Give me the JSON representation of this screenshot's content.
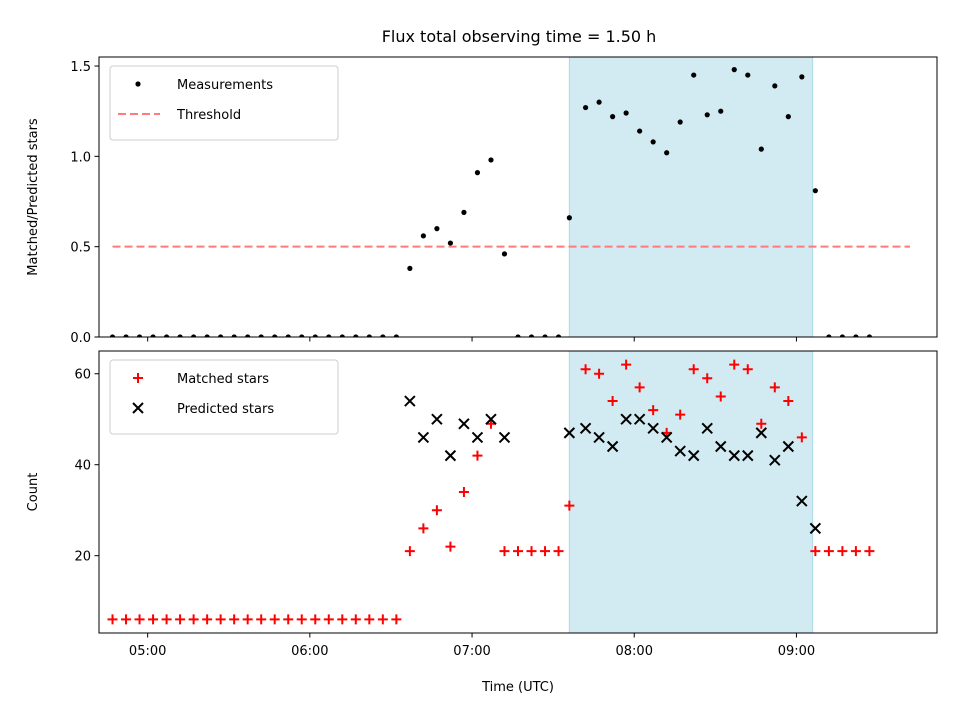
{
  "chart_data": [
    {
      "type": "scatter",
      "title": "Flux total observing time = 1.50 h",
      "xlabel": "",
      "ylabel": "Matched/Predicted stars",
      "xlim": [
        "04:42",
        "09:52"
      ],
      "ylim": [
        0,
        1.55
      ],
      "yticks": [
        "0.0",
        "0.5",
        "1.0",
        "1.5"
      ],
      "xticks": [
        "05:00",
        "06:00",
        "07:00",
        "08:00",
        "09:00"
      ],
      "show_xtick_labels": false,
      "legend": {
        "placement": "top-left",
        "entries": [
          "Measurements",
          "Threshold"
        ]
      },
      "shaded_interval": {
        "x": [
          "07:36",
          "09:06"
        ],
        "color": "#add8e6"
      },
      "threshold": {
        "name": "Threshold",
        "value": 0.5,
        "x": [
          "04:47",
          "09:42"
        ],
        "color": "#ff7b7b"
      },
      "series": [
        {
          "name": "Measurements",
          "color": "#000000",
          "marker": "dot",
          "points": [
            [
              "04:47",
              0
            ],
            [
              "04:52",
              0
            ],
            [
              "04:57",
              0
            ],
            [
              "05:02",
              0
            ],
            [
              "05:07",
              0
            ],
            [
              "05:12",
              0
            ],
            [
              "05:17",
              0
            ],
            [
              "05:22",
              0
            ],
            [
              "05:27",
              0
            ],
            [
              "05:32",
              0
            ],
            [
              "05:37",
              0
            ],
            [
              "05:42",
              0
            ],
            [
              "05:47",
              0
            ],
            [
              "05:52",
              0
            ],
            [
              "05:57",
              0
            ],
            [
              "06:02",
              0
            ],
            [
              "06:07",
              0
            ],
            [
              "06:12",
              0
            ],
            [
              "06:17",
              0
            ],
            [
              "06:22",
              0
            ],
            [
              "06:27",
              0
            ],
            [
              "06:32",
              0
            ],
            [
              "06:37",
              0.38
            ],
            [
              "06:42",
              0.56
            ],
            [
              "06:47",
              0.6
            ],
            [
              "06:52",
              0.52
            ],
            [
              "06:57",
              0.69
            ],
            [
              "07:02",
              0.91
            ],
            [
              "07:07",
              0.98
            ],
            [
              "07:12",
              0.46
            ],
            [
              "07:17",
              0
            ],
            [
              "07:22",
              0
            ],
            [
              "07:27",
              0
            ],
            [
              "07:32",
              0
            ],
            [
              "07:36",
              0.66
            ],
            [
              "07:42",
              1.27
            ],
            [
              "07:47",
              1.3
            ],
            [
              "07:52",
              1.22
            ],
            [
              "07:57",
              1.24
            ],
            [
              "08:02",
              1.14
            ],
            [
              "08:07",
              1.08
            ],
            [
              "08:12",
              1.02
            ],
            [
              "08:17",
              1.19
            ],
            [
              "08:22",
              1.45
            ],
            [
              "08:27",
              1.23
            ],
            [
              "08:32",
              1.25
            ],
            [
              "08:37",
              1.48
            ],
            [
              "08:42",
              1.45
            ],
            [
              "08:47",
              1.04
            ],
            [
              "08:52",
              1.39
            ],
            [
              "08:57",
              1.22
            ],
            [
              "09:02",
              1.44
            ],
            [
              "09:07",
              0.81
            ],
            [
              "09:12",
              0
            ],
            [
              "09:17",
              0
            ],
            [
              "09:22",
              0
            ],
            [
              "09:27",
              0
            ]
          ]
        }
      ]
    },
    {
      "type": "scatter",
      "title": "",
      "xlabel": "Time (UTC)",
      "ylabel": "Count",
      "xlim": [
        "04:42",
        "09:52"
      ],
      "ylim": [
        3,
        65
      ],
      "yticks": [
        "20",
        "40",
        "60"
      ],
      "xticks": [
        "05:00",
        "06:00",
        "07:00",
        "08:00",
        "09:00"
      ],
      "legend": {
        "placement": "top-left",
        "entries": [
          "Matched stars",
          "Predicted stars"
        ]
      },
      "shaded_interval": {
        "x": [
          "07:36",
          "09:06"
        ],
        "color": "#add8e6"
      },
      "series": [
        {
          "name": "Matched stars",
          "color": "#ff0000",
          "marker": "plus",
          "points": [
            [
              "04:47",
              6
            ],
            [
              "04:52",
              6
            ],
            [
              "04:57",
              6
            ],
            [
              "05:02",
              6
            ],
            [
              "05:07",
              6
            ],
            [
              "05:12",
              6
            ],
            [
              "05:17",
              6
            ],
            [
              "05:22",
              6
            ],
            [
              "05:27",
              6
            ],
            [
              "05:32",
              6
            ],
            [
              "05:37",
              6
            ],
            [
              "05:42",
              6
            ],
            [
              "05:47",
              6
            ],
            [
              "05:52",
              6
            ],
            [
              "05:57",
              6
            ],
            [
              "06:02",
              6
            ],
            [
              "06:07",
              6
            ],
            [
              "06:12",
              6
            ],
            [
              "06:17",
              6
            ],
            [
              "06:22",
              6
            ],
            [
              "06:27",
              6
            ],
            [
              "06:32",
              6
            ],
            [
              "06:37",
              21
            ],
            [
              "06:42",
              26
            ],
            [
              "06:47",
              30
            ],
            [
              "06:52",
              22
            ],
            [
              "06:57",
              34
            ],
            [
              "07:02",
              42
            ],
            [
              "07:07",
              49
            ],
            [
              "07:12",
              21
            ],
            [
              "07:17",
              21
            ],
            [
              "07:22",
              21
            ],
            [
              "07:27",
              21
            ],
            [
              "07:32",
              21
            ],
            [
              "07:36",
              31
            ],
            [
              "07:42",
              61
            ],
            [
              "07:47",
              60
            ],
            [
              "07:52",
              54
            ],
            [
              "07:57",
              62
            ],
            [
              "08:02",
              57
            ],
            [
              "08:07",
              52
            ],
            [
              "08:12",
              47
            ],
            [
              "08:17",
              51
            ],
            [
              "08:22",
              61
            ],
            [
              "08:27",
              59
            ],
            [
              "08:32",
              55
            ],
            [
              "08:37",
              62
            ],
            [
              "08:42",
              61
            ],
            [
              "08:47",
              49
            ],
            [
              "08:52",
              57
            ],
            [
              "08:57",
              54
            ],
            [
              "09:02",
              46
            ],
            [
              "09:07",
              21
            ],
            [
              "09:12",
              21
            ],
            [
              "09:17",
              21
            ],
            [
              "09:22",
              21
            ],
            [
              "09:27",
              21
            ]
          ]
        },
        {
          "name": "Predicted stars",
          "color": "#000000",
          "marker": "x",
          "points": [
            [
              "06:37",
              54
            ],
            [
              "06:42",
              46
            ],
            [
              "06:47",
              50
            ],
            [
              "06:52",
              42
            ],
            [
              "06:57",
              49
            ],
            [
              "07:02",
              46
            ],
            [
              "07:07",
              50
            ],
            [
              "07:12",
              46
            ],
            [
              "07:36",
              47
            ],
            [
              "07:42",
              48
            ],
            [
              "07:47",
              46
            ],
            [
              "07:52",
              44
            ],
            [
              "07:57",
              50
            ],
            [
              "08:02",
              50
            ],
            [
              "08:07",
              48
            ],
            [
              "08:12",
              46
            ],
            [
              "08:17",
              43
            ],
            [
              "08:22",
              42
            ],
            [
              "08:27",
              48
            ],
            [
              "08:32",
              44
            ],
            [
              "08:37",
              42
            ],
            [
              "08:42",
              42
            ],
            [
              "08:47",
              47
            ],
            [
              "08:52",
              41
            ],
            [
              "08:57",
              44
            ],
            [
              "09:02",
              32
            ],
            [
              "09:07",
              26
            ]
          ]
        }
      ]
    }
  ]
}
